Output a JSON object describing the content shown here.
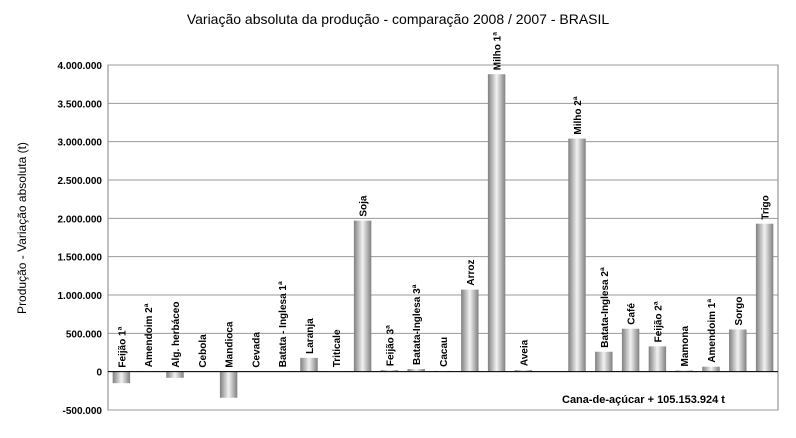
{
  "chart_data": {
    "type": "bar",
    "title": "Variação absoluta da produção - comparação 2008 / 2007 - BRASIL",
    "xlabel": "",
    "ylabel": "Produção - Variação absoluta (t)",
    "ylim": [
      -500000,
      4000000
    ],
    "yticks": [
      "-500.000",
      "0",
      "500.000",
      "1.000.000",
      "1.500.000",
      "2.000.000",
      "2.500.000",
      "3.000.000",
      "3.500.000",
      "4.000.000"
    ],
    "grid": true,
    "categories": [
      "Feijão 1ª",
      "Amendoim 2ª",
      "Alg. herbáceo",
      "Cebola",
      "Mandioca",
      "Cevada",
      "Batata - Inglesa 1ª",
      "Laranja",
      "Triticale",
      "Soja",
      "Feijão 3ª",
      "Batata-Inglesa 3ª",
      "Cacau",
      "Arroz",
      "Milho 1ª",
      "Aveia",
      "Milho 2ª",
      "Batata-Inglesa 2ª",
      "Café",
      "Feijão 2ª",
      "Mamona",
      "Amendoim 1ª",
      "Sorgo",
      "Trigo"
    ],
    "values": [
      -150000,
      5000,
      -80000,
      0,
      -340000,
      0,
      5000,
      180000,
      5000,
      1970000,
      20000,
      35000,
      10000,
      1070000,
      3880000,
      20000,
      3040000,
      260000,
      560000,
      330000,
      15000,
      65000,
      550000,
      1930000
    ],
    "annotation": "Cana-de-açúcar  + 105.153.924 t"
  }
}
